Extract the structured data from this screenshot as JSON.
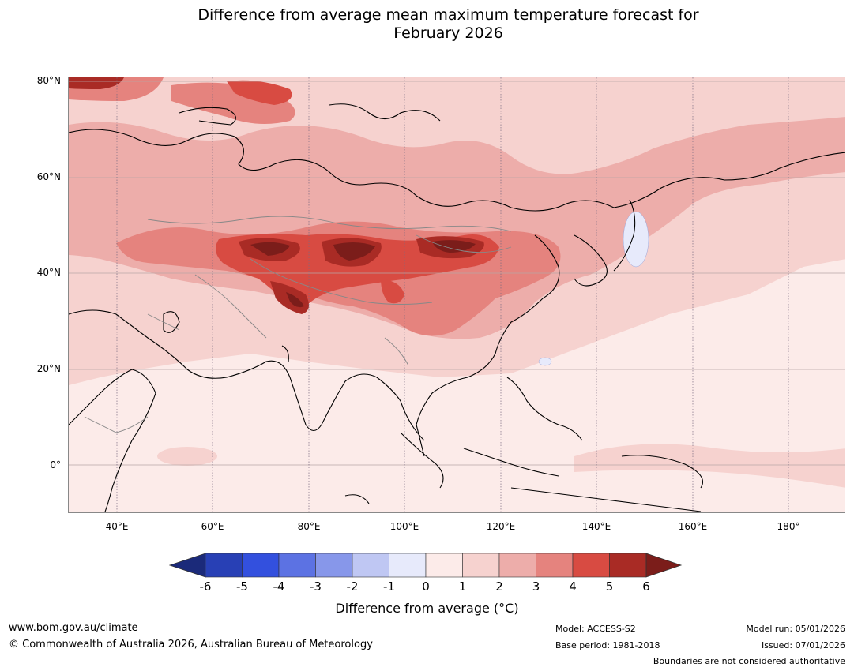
{
  "title_line1": "Difference from average mean maximum temperature forecast for",
  "title_line2": "February 2026",
  "lat_labels": [
    "80°N",
    "60°N",
    "40°N",
    "20°N",
    "0°"
  ],
  "lon_labels": [
    "40°E",
    "60°E",
    "80°E",
    "100°E",
    "120°E",
    "140°E",
    "160°E",
    "180°"
  ],
  "colorbar": {
    "ticks": [
      "-6",
      "-5",
      "-4",
      "-3",
      "-2",
      "-1",
      "0",
      "1",
      "2",
      "3",
      "4",
      "5",
      "6"
    ],
    "label": "Difference from average (°C)",
    "colors": [
      "#1b2a7a",
      "#2840b5",
      "#3350de",
      "#5c72e3",
      "#8797ea",
      "#bfc7f3",
      "#e7eafb",
      "#fcebe9",
      "#f6d2cf",
      "#edadaa",
      "#e5837e",
      "#d84b42",
      "#a92b25",
      "#7b1d1a"
    ]
  },
  "footer": {
    "website": "www.bom.gov.au/climate",
    "copyright": "© Commonwealth of Australia 2026, Australian Bureau of Meteorology",
    "model": "Model: ACCESS-S2",
    "base_period": "Base period: 1981-2018",
    "model_run": "Model run: 05/01/2026",
    "issued": "Issued: 07/01/2026",
    "boundaries": "Boundaries are not considered authoritative"
  }
}
